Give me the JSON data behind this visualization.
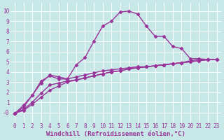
{
  "lines": [
    {
      "x": [
        0,
        1,
        2,
        3,
        4,
        5,
        6,
        7,
        8,
        9,
        10,
        11,
        12,
        13,
        14,
        15,
        16,
        17,
        18,
        19,
        20,
        21,
        22,
        23
      ],
      "y": [
        -0.1,
        0.7,
        1.7,
        3.1,
        3.6,
        3.3,
        3.3,
        4.7,
        5.4,
        7.0,
        8.5,
        9.0,
        9.9,
        10.0,
        9.7,
        8.5,
        7.5,
        7.5,
        6.5,
        6.3,
        5.3,
        5.3,
        5.2,
        5.2
      ],
      "color": "#993399",
      "marker": "D",
      "markersize": 2.5,
      "linewidth": 1.0
    },
    {
      "x": [
        0,
        1,
        2,
        3,
        4,
        5,
        6,
        7,
        8,
        9,
        10,
        11,
        12,
        13,
        14,
        15,
        16,
        17,
        18,
        19,
        20,
        21,
        22,
        23
      ],
      "y": [
        -0.1,
        0.5,
        1.7,
        2.9,
        3.7,
        3.5,
        3.3,
        3.5,
        3.7,
        3.9,
        4.1,
        4.2,
        4.3,
        4.4,
        4.5,
        4.5,
        4.6,
        4.7,
        4.8,
        4.9,
        5.1,
        5.2,
        5.2,
        5.2
      ],
      "color": "#993399",
      "marker": "D",
      "markersize": 2.5,
      "linewidth": 1.0
    },
    {
      "x": [
        0,
        1,
        2,
        3,
        4,
        5,
        6,
        7,
        8,
        9,
        10,
        11,
        12,
        13,
        14,
        15,
        16,
        17,
        18,
        19,
        20,
        21,
        22,
        23
      ],
      "y": [
        -0.1,
        0.3,
        1.0,
        1.9,
        2.7,
        2.9,
        3.1,
        3.2,
        3.4,
        3.6,
        3.8,
        4.0,
        4.1,
        4.3,
        4.4,
        4.5,
        4.6,
        4.7,
        4.8,
        4.9,
        5.0,
        5.1,
        5.2,
        5.2
      ],
      "color": "#993399",
      "marker": "D",
      "markersize": 2.5,
      "linewidth": 1.0
    },
    {
      "x": [
        0,
        1,
        2,
        3,
        4,
        5,
        6,
        7,
        8,
        9,
        10,
        11,
        12,
        13,
        14,
        15,
        16,
        17,
        18,
        19,
        20,
        21,
        22,
        23
      ],
      "y": [
        -0.1,
        0.2,
        0.8,
        1.5,
        2.2,
        2.6,
        3.0,
        3.2,
        3.4,
        3.6,
        3.8,
        4.0,
        4.1,
        4.3,
        4.4,
        4.5,
        4.6,
        4.7,
        4.8,
        4.9,
        5.0,
        5.1,
        5.2,
        5.2
      ],
      "color": "#993399",
      "marker": "D",
      "markersize": 2.5,
      "linewidth": 1.0
    }
  ],
  "background_color": "#c8e8e8",
  "grid_color": "#aacccc",
  "xlabel": "Windchill (Refroidissement éolien,°C)",
  "xlabel_color": "#993399",
  "xlabel_fontsize": 6.5,
  "tick_color": "#993399",
  "tick_fontsize": 5.5,
  "xlim": [
    -0.5,
    23.5
  ],
  "ylim": [
    -1.0,
    10.8
  ],
  "yticks": [
    0,
    1,
    2,
    3,
    4,
    5,
    6,
    7,
    8,
    9,
    10
  ],
  "ytick_labels": [
    "-0",
    "1",
    "2",
    "3",
    "4",
    "5",
    "6",
    "7",
    "8",
    "9",
    "10"
  ],
  "xticks": [
    0,
    1,
    2,
    3,
    4,
    5,
    6,
    7,
    8,
    9,
    10,
    11,
    12,
    13,
    14,
    15,
    16,
    17,
    18,
    19,
    20,
    21,
    22,
    23
  ]
}
